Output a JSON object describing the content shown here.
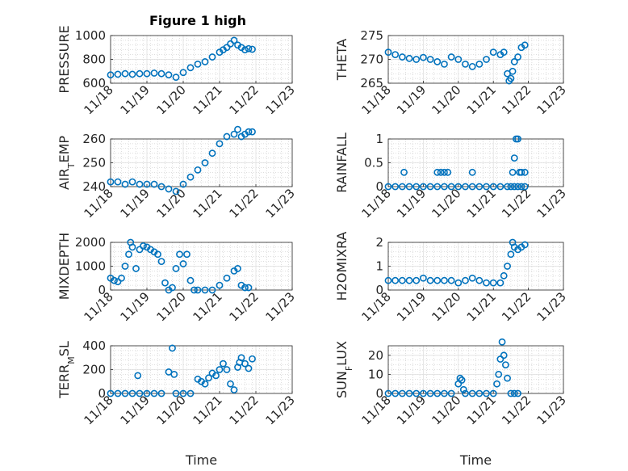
{
  "figure": {
    "title": "Figure 1 high"
  },
  "colors": {
    "marker": "#0072bd",
    "axes": "#262626"
  },
  "chart_data": [
    {
      "type": "scatter",
      "ylabel": "PRESSURE",
      "xlabel": "",
      "xlim": [
        "11/18",
        "11/23"
      ],
      "xticks": [
        "11/18",
        "11/19",
        "11/20",
        "11/21",
        "11/22",
        "11/23"
      ],
      "ylim": [
        600,
        1000
      ],
      "yticks": [
        600,
        800,
        1000
      ],
      "grid": true,
      "x": [
        18.0,
        18.2,
        18.4,
        18.6,
        18.8,
        19.0,
        19.2,
        19.4,
        19.6,
        19.8,
        20.0,
        20.2,
        20.4,
        20.6,
        20.8,
        21.0,
        21.1,
        21.2,
        21.3,
        21.4,
        21.5,
        21.6,
        21.7,
        21.8,
        21.9
      ],
      "y": [
        670,
        675,
        680,
        675,
        680,
        680,
        685,
        680,
        670,
        650,
        690,
        730,
        760,
        780,
        820,
        860,
        880,
        900,
        930,
        960,
        920,
        900,
        880,
        890,
        885
      ]
    },
    {
      "type": "scatter",
      "ylabel": "THETA",
      "xlabel": "",
      "xlim": [
        "11/18",
        "11/23"
      ],
      "xticks": [
        "11/18",
        "11/19",
        "11/20",
        "11/21",
        "11/22",
        "11/23"
      ],
      "ylim": [
        265,
        275
      ],
      "yticks": [
        265,
        270,
        275
      ],
      "grid": true,
      "x": [
        18.0,
        18.2,
        18.4,
        18.6,
        18.8,
        19.0,
        19.2,
        19.4,
        19.6,
        19.8,
        20.0,
        20.2,
        20.4,
        20.6,
        20.8,
        21.0,
        21.2,
        21.3,
        21.4,
        21.45,
        21.5,
        21.55,
        21.6,
        21.7,
        21.8,
        21.9
      ],
      "y": [
        271.5,
        271.0,
        270.5,
        270.2,
        270.0,
        270.4,
        270.0,
        269.5,
        269.0,
        270.5,
        270.0,
        269.0,
        268.5,
        269.0,
        270.0,
        271.5,
        271.0,
        271.5,
        267.0,
        265.5,
        266.0,
        267.5,
        269.5,
        270.5,
        272.5,
        273.0
      ]
    },
    {
      "type": "scatter",
      "ylabel": "AIR_TEMP",
      "xlabel": "",
      "xlim": [
        "11/18",
        "11/23"
      ],
      "xticks": [
        "11/18",
        "11/19",
        "11/20",
        "11/21",
        "11/22",
        "11/23"
      ],
      "ylim": [
        240,
        260
      ],
      "yticks": [
        240,
        250,
        260
      ],
      "grid": true,
      "x": [
        18.0,
        18.2,
        18.4,
        18.6,
        18.8,
        19.0,
        19.2,
        19.4,
        19.6,
        19.8,
        20.0,
        20.2,
        20.4,
        20.6,
        20.8,
        21.0,
        21.2,
        21.4,
        21.5,
        21.6,
        21.7,
        21.8,
        21.9
      ],
      "y": [
        242,
        242,
        241,
        242,
        241,
        241,
        241,
        240,
        239,
        238,
        241,
        244,
        247,
        250,
        254,
        258,
        261,
        262,
        264,
        261,
        262,
        263,
        263
      ]
    },
    {
      "type": "scatter",
      "ylabel": "RAINFALL",
      "xlabel": "",
      "xlim": [
        "11/18",
        "11/23"
      ],
      "xticks": [
        "11/18",
        "11/19",
        "11/20",
        "11/21",
        "11/22",
        "11/23"
      ],
      "ylim": [
        0,
        1
      ],
      "yticks": [
        0,
        0.5,
        1
      ],
      "grid": true,
      "x": [
        18.0,
        18.2,
        18.4,
        18.6,
        18.8,
        19.0,
        19.2,
        19.4,
        19.6,
        19.8,
        20.0,
        20.2,
        20.4,
        20.6,
        20.8,
        21.0,
        21.2,
        21.4,
        21.5,
        21.6,
        21.7,
        21.8,
        21.9,
        18.45,
        19.4,
        19.5,
        19.6,
        19.7,
        20.4,
        21.55,
        21.6,
        21.65,
        21.7,
        21.75,
        21.8,
        21.9
      ],
      "y": [
        0,
        0,
        0,
        0,
        0,
        0,
        0,
        0,
        0,
        0,
        0,
        0,
        0,
        0,
        0,
        0,
        0,
        0,
        0,
        0,
        0,
        0,
        0,
        0.3,
        0.3,
        0.3,
        0.3,
        0.3,
        0.3,
        0.3,
        0.6,
        1.0,
        1.0,
        0.3,
        0.3,
        0.3
      ]
    },
    {
      "type": "scatter",
      "ylabel": "MIXDEPTH",
      "xlabel": "",
      "xlim": [
        "11/18",
        "11/23"
      ],
      "xticks": [
        "11/18",
        "11/19",
        "11/20",
        "11/21",
        "11/22",
        "11/23"
      ],
      "ylim": [
        0,
        2000
      ],
      "yticks": [
        0,
        1000,
        2000
      ],
      "grid": true,
      "x": [
        18.0,
        18.1,
        18.2,
        18.3,
        18.4,
        18.5,
        18.55,
        18.6,
        18.7,
        18.8,
        18.9,
        19.0,
        19.1,
        19.2,
        19.3,
        19.4,
        19.5,
        19.6,
        19.7,
        19.8,
        19.9,
        20.0,
        20.1,
        20.2,
        20.3,
        20.4,
        20.6,
        20.8,
        21.0,
        21.2,
        21.4,
        21.5,
        21.6,
        21.7,
        21.8
      ],
      "y": [
        500,
        400,
        350,
        500,
        1000,
        1500,
        2000,
        1800,
        900,
        1700,
        1850,
        1800,
        1700,
        1600,
        1500,
        1200,
        300,
        0,
        100,
        900,
        1500,
        1100,
        1500,
        400,
        0,
        0,
        0,
        0,
        200,
        500,
        800,
        900,
        200,
        100,
        100
      ]
    },
    {
      "type": "scatter",
      "ylabel": "H2OMIXRA",
      "xlabel": "",
      "xlim": [
        "11/18",
        "11/23"
      ],
      "xticks": [
        "11/18",
        "11/19",
        "11/20",
        "11/21",
        "11/22",
        "11/23"
      ],
      "ylim": [
        0,
        2
      ],
      "yticks": [
        0,
        1,
        2
      ],
      "grid": true,
      "x": [
        18.0,
        18.2,
        18.4,
        18.6,
        18.8,
        19.0,
        19.2,
        19.4,
        19.6,
        19.8,
        20.0,
        20.2,
        20.4,
        20.6,
        20.8,
        21.0,
        21.2,
        21.3,
        21.4,
        21.5,
        21.55,
        21.6,
        21.7,
        21.8,
        21.9
      ],
      "y": [
        0.4,
        0.4,
        0.4,
        0.4,
        0.4,
        0.5,
        0.4,
        0.4,
        0.4,
        0.4,
        0.3,
        0.4,
        0.5,
        0.4,
        0.3,
        0.3,
        0.3,
        0.6,
        1.0,
        1.5,
        2.0,
        1.8,
        1.7,
        1.8,
        1.9
      ]
    },
    {
      "type": "scatter",
      "ylabel": "TERR_MSL",
      "xlabel": "Time",
      "xlim": [
        "11/18",
        "11/23"
      ],
      "xticks": [
        "11/18",
        "11/19",
        "11/20",
        "11/21",
        "11/22",
        "11/23"
      ],
      "ylim": [
        0,
        400
      ],
      "yticks": [
        0,
        200,
        400
      ],
      "grid": true,
      "x": [
        18.0,
        18.2,
        18.4,
        18.6,
        18.75,
        18.8,
        19.0,
        19.2,
        19.4,
        19.6,
        19.7,
        19.75,
        19.8,
        20.0,
        20.2,
        20.4,
        20.5,
        20.6,
        20.7,
        20.8,
        20.9,
        21.0,
        21.1,
        21.2,
        21.3,
        21.4,
        21.5,
        21.55,
        21.6,
        21.7,
        21.8,
        21.9
      ],
      "y": [
        0,
        0,
        0,
        0,
        150,
        0,
        0,
        0,
        0,
        180,
        380,
        160,
        0,
        0,
        0,
        120,
        100,
        80,
        130,
        170,
        150,
        200,
        250,
        200,
        80,
        30,
        220,
        260,
        300,
        250,
        210,
        290
      ]
    },
    {
      "type": "scatter",
      "ylabel": "SUN_FLUX",
      "xlabel": "Time",
      "xlim": [
        "11/18",
        "11/23"
      ],
      "xticks": [
        "11/18",
        "11/19",
        "11/20",
        "11/21",
        "11/22",
        "11/23"
      ],
      "ylim": [
        0,
        25
      ],
      "yticks": [
        0,
        10,
        20
      ],
      "grid": true,
      "x": [
        18.0,
        18.2,
        18.4,
        18.6,
        18.8,
        19.0,
        19.2,
        19.4,
        19.6,
        19.8,
        20.0,
        20.05,
        20.1,
        20.15,
        20.2,
        20.4,
        20.6,
        20.8,
        21.0,
        21.1,
        21.15,
        21.2,
        21.25,
        21.3,
        21.35,
        21.4,
        21.5,
        21.6,
        21.7
      ],
      "y": [
        0,
        0,
        0,
        0,
        0,
        0,
        0,
        0,
        0,
        0,
        5,
        8,
        7,
        2,
        0,
        0,
        0,
        0,
        0,
        5,
        10,
        18,
        27,
        20,
        15,
        8,
        0,
        0,
        0
      ]
    }
  ]
}
